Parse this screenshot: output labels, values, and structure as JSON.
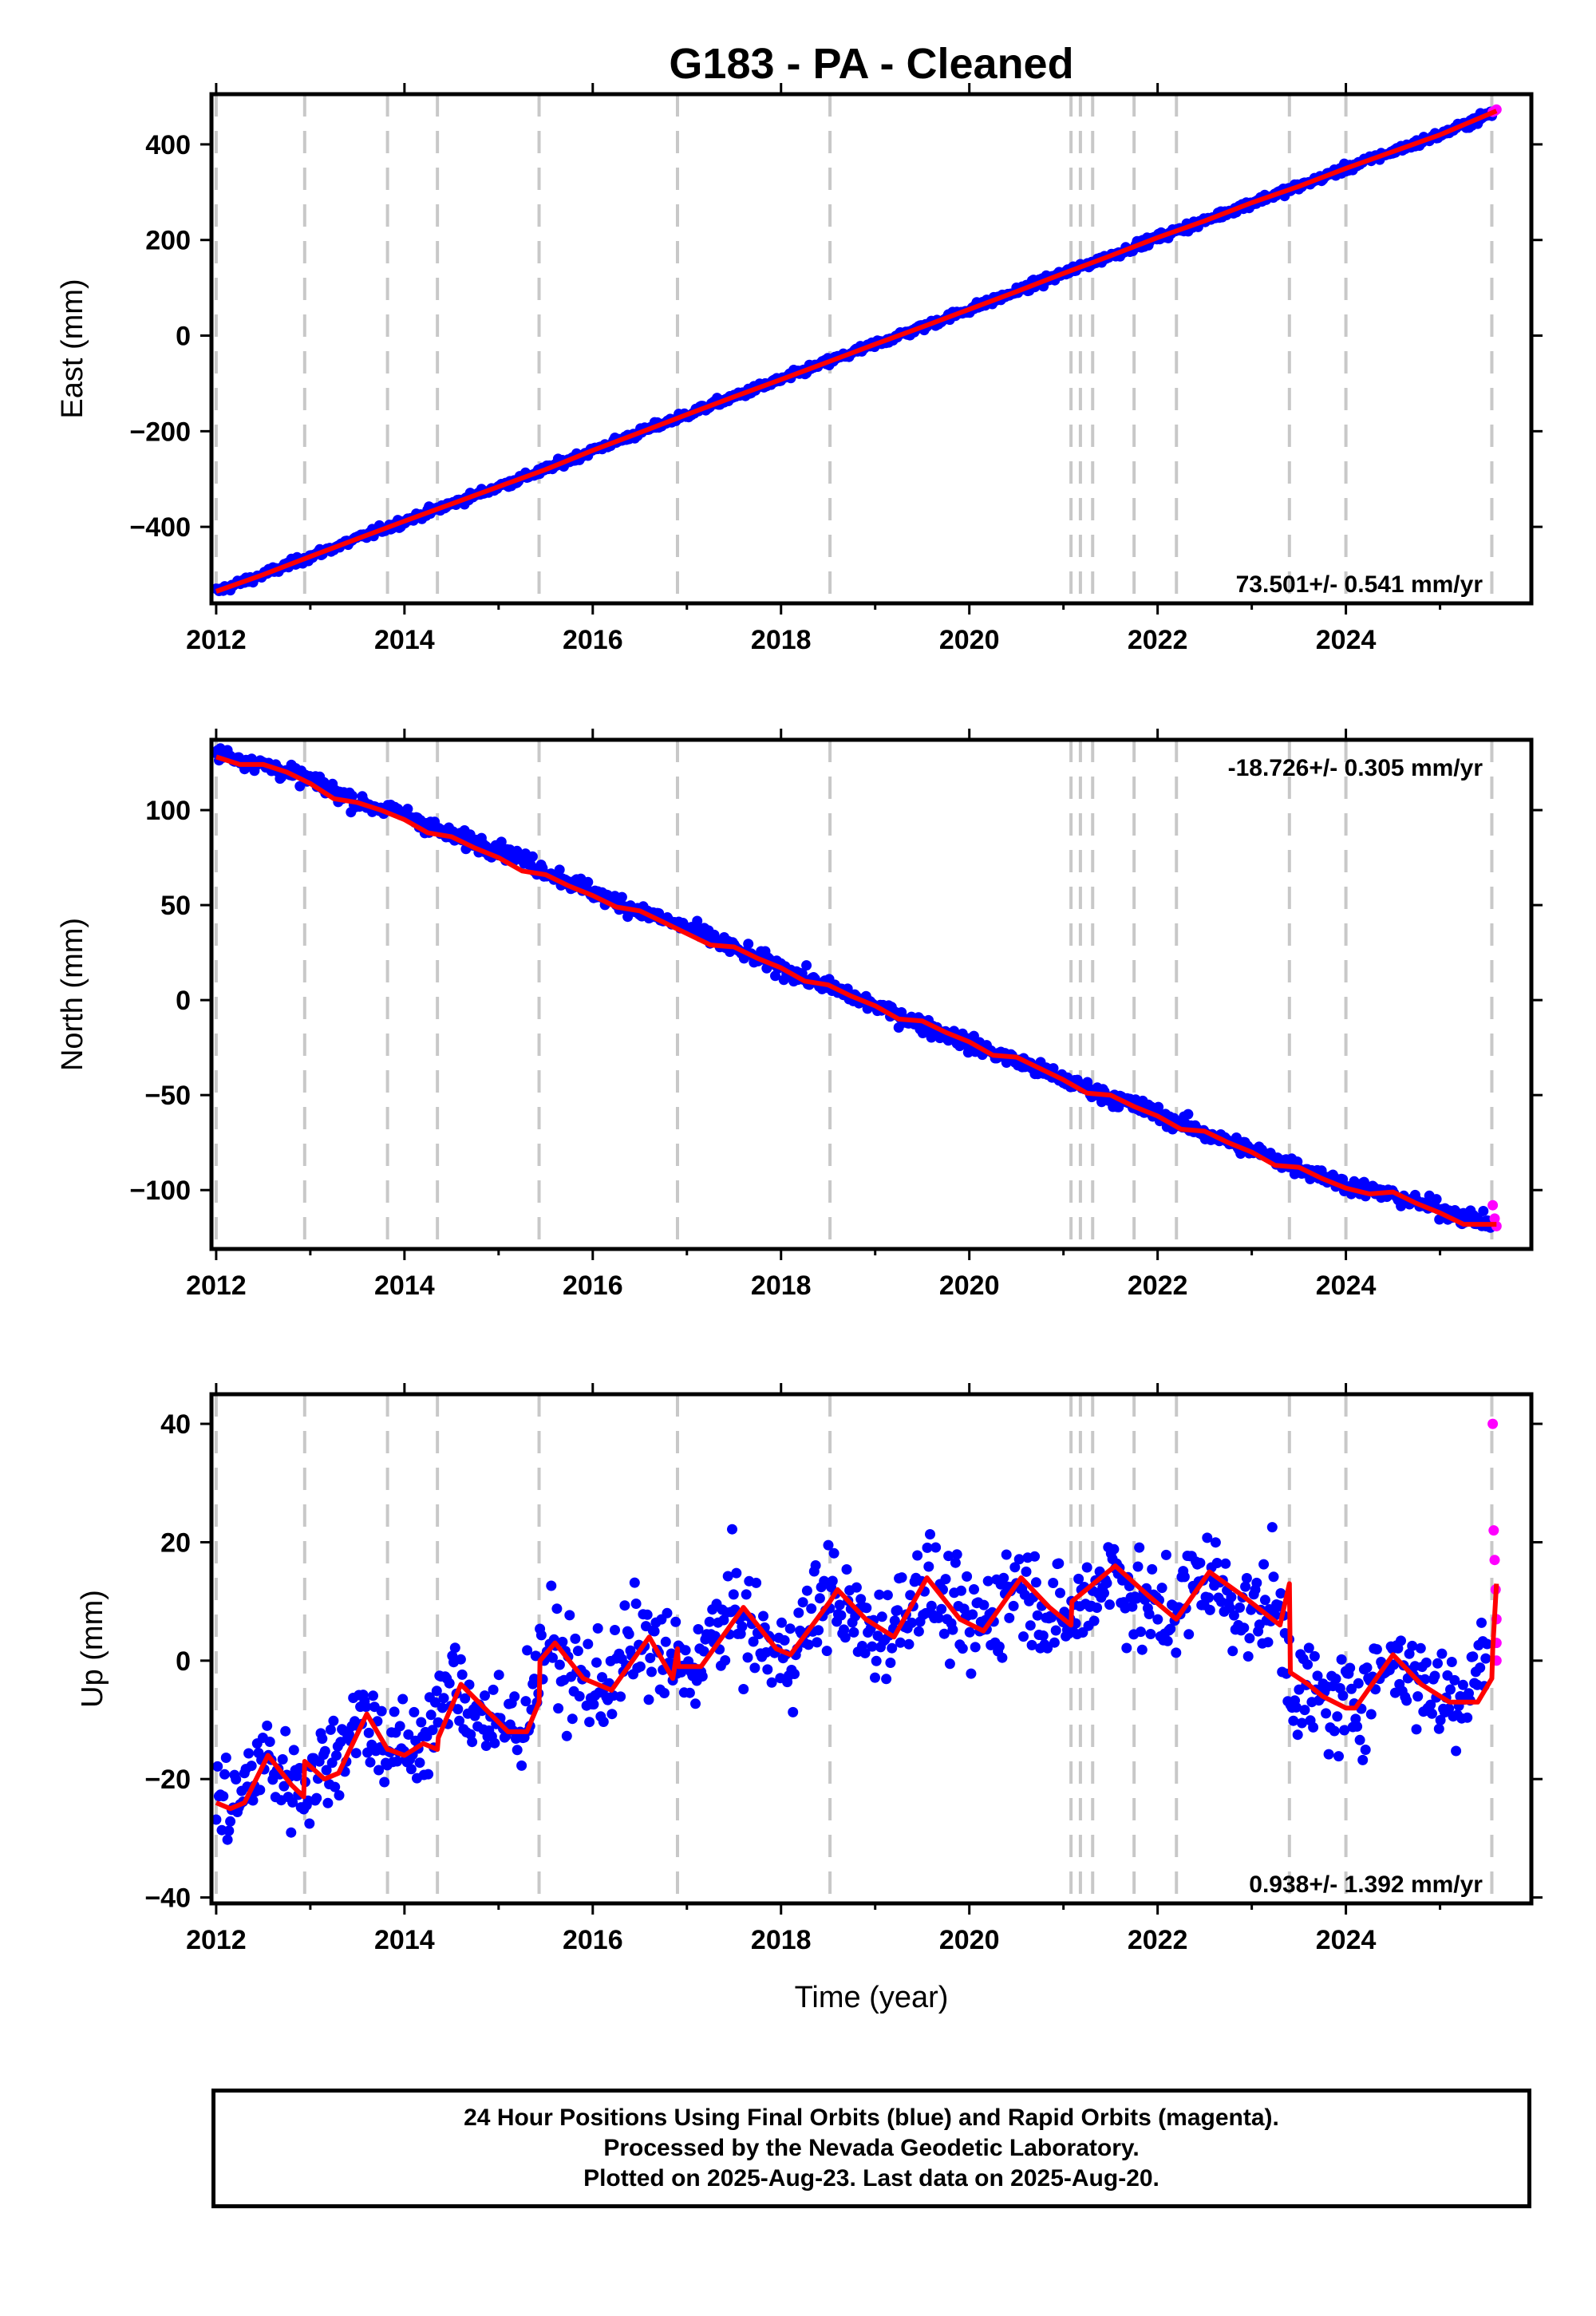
{
  "page_title": "G183  - PA - Cleaned",
  "footer": {
    "line1": "24 Hour Positions Using Final Orbits (blue) and Rapid Orbits (magenta).",
    "line2": "Processed by the Nevada Geodetic Laboratory.",
    "line3": "Plotted on 2025-Aug-23. Last data on 2025-Aug-20."
  },
  "colors": {
    "final_orbits": "#0000ff",
    "rapid_orbits": "#ff00ff",
    "model": "#ff0000",
    "equipment_lines": "#c8c8c8"
  },
  "chart_data": [
    {
      "type": "scatter",
      "title": "G183  - PA - Cleaned",
      "ylabel": "East (mm)",
      "xlabel": "",
      "xlim": [
        2011.95,
        2025.97
      ],
      "ylim": [
        -560,
        505
      ],
      "xticks": [
        2012,
        2014,
        2016,
        2018,
        2020,
        2022,
        2024
      ],
      "xtick_labels": [
        "2012",
        "2014",
        "2016",
        "2018",
        "2020",
        "2022",
        "2024"
      ],
      "yticks": [
        -400,
        -200,
        0,
        200,
        400
      ],
      "ytick_labels": [
        "−400",
        "−200",
        "0",
        "200",
        "400"
      ],
      "rate_label": "73.501+/- 0.541 mm/yr",
      "rate_position": "bottom-right",
      "grid": false,
      "event_lines": [
        2012.0,
        2012.94,
        2013.82,
        2014.35,
        2015.43,
        2016.9,
        2018.52,
        2021.08,
        2021.18,
        2021.31,
        2021.75,
        2022.2,
        2023.4,
        2024.0,
        2025.55
      ],
      "series": [
        {
          "name": "Final Orbits",
          "color": "#0000ff",
          "kind": "points",
          "x": [
            2012.0,
            2012.5,
            2013.0,
            2013.5,
            2014.0,
            2014.5,
            2015.0,
            2015.5,
            2016.0,
            2016.5,
            2017.0,
            2017.5,
            2018.0,
            2018.5,
            2019.0,
            2019.5,
            2020.0,
            2020.5,
            2021.0,
            2021.5,
            2022.0,
            2022.5,
            2023.0,
            2023.5,
            2024.0,
            2024.5,
            2025.0,
            2025.55
          ],
          "y": [
            -535,
            -500,
            -462,
            -425,
            -388,
            -352,
            -316,
            -280,
            -240,
            -203,
            -165,
            -128,
            -92,
            -55,
            -18,
            18,
            55,
            92,
            130,
            167,
            205,
            240,
            278,
            312,
            350,
            385,
            420,
            465
          ],
          "scatter_mm": 6
        },
        {
          "name": "Rapid Orbits",
          "color": "#ff00ff",
          "kind": "points",
          "x": [
            2025.56,
            2025.58,
            2025.6
          ],
          "y": [
            468,
            470,
            473
          ]
        },
        {
          "name": "Model",
          "color": "#ff0000",
          "kind": "line",
          "x": [
            2012.0,
            2012.5,
            2013.0,
            2013.5,
            2014.0,
            2014.5,
            2015.0,
            2015.5,
            2016.0,
            2016.5,
            2017.0,
            2017.5,
            2018.0,
            2018.5,
            2019.0,
            2019.5,
            2020.0,
            2020.5,
            2021.0,
            2021.5,
            2022.0,
            2022.5,
            2023.0,
            2023.5,
            2024.0,
            2024.5,
            2025.0,
            2025.6
          ],
          "y": [
            -535,
            -500,
            -462,
            -425,
            -388,
            -352,
            -316,
            -280,
            -240,
            -203,
            -165,
            -128,
            -92,
            -55,
            -18,
            18,
            55,
            92,
            130,
            167,
            205,
            240,
            278,
            312,
            350,
            385,
            420,
            470
          ]
        }
      ]
    },
    {
      "type": "scatter",
      "ylabel": "North (mm)",
      "xlabel": "",
      "xlim": [
        2011.95,
        2025.97
      ],
      "ylim": [
        -131,
        137
      ],
      "xticks": [
        2012,
        2014,
        2016,
        2018,
        2020,
        2022,
        2024
      ],
      "xtick_labels": [
        "2012",
        "2014",
        "2016",
        "2018",
        "2020",
        "2022",
        "2024"
      ],
      "yticks": [
        -100,
        -50,
        0,
        50,
        100
      ],
      "ytick_labels": [
        "−100",
        "−50",
        "0",
        "50",
        "100"
      ],
      "rate_label": "-18.726+/- 0.305 mm/yr",
      "rate_position": "top-right",
      "grid": false,
      "event_lines": [
        2012.0,
        2012.94,
        2013.82,
        2014.35,
        2015.43,
        2016.9,
        2018.52,
        2021.08,
        2021.18,
        2021.31,
        2021.75,
        2022.2,
        2023.4,
        2024.0,
        2025.55
      ],
      "series": [
        {
          "name": "Final Orbits",
          "color": "#0000ff",
          "kind": "points",
          "x": [
            2012.0,
            2012.5,
            2013.0,
            2013.5,
            2014.0,
            2014.5,
            2015.0,
            2015.5,
            2016.0,
            2016.5,
            2017.0,
            2017.5,
            2018.0,
            2018.5,
            2019.0,
            2019.5,
            2020.0,
            2020.5,
            2021.0,
            2021.5,
            2022.0,
            2022.5,
            2023.0,
            2023.5,
            2024.0,
            2024.5,
            2025.0,
            2025.55
          ],
          "y": [
            130,
            124,
            116,
            104,
            98,
            86,
            80,
            68,
            57,
            47,
            38,
            27,
            17,
            7,
            -3,
            -13,
            -23,
            -32,
            -42,
            -51,
            -60,
            -70,
            -79,
            -88,
            -97,
            -103,
            -110,
            -118
          ],
          "scatter_mm": 3
        },
        {
          "name": "Rapid Orbits",
          "color": "#ff00ff",
          "kind": "points",
          "x": [
            2025.56,
            2025.58,
            2025.6
          ],
          "y": [
            -108,
            -115,
            -119
          ]
        },
        {
          "name": "Model",
          "color": "#ff0000",
          "kind": "line",
          "x": [
            2012.0,
            2012.25,
            2012.5,
            2012.75,
            2013.0,
            2013.25,
            2013.5,
            2013.75,
            2014.0,
            2014.25,
            2014.5,
            2014.75,
            2015.0,
            2015.25,
            2015.5,
            2015.75,
            2016.0,
            2016.25,
            2016.5,
            2016.75,
            2017.0,
            2017.25,
            2017.5,
            2017.75,
            2018.0,
            2018.25,
            2018.5,
            2018.75,
            2019.0,
            2019.25,
            2019.5,
            2019.75,
            2020.0,
            2020.25,
            2020.5,
            2020.75,
            2021.0,
            2021.25,
            2021.5,
            2021.75,
            2022.0,
            2022.25,
            2022.5,
            2022.75,
            2023.0,
            2023.25,
            2023.5,
            2023.75,
            2024.0,
            2024.25,
            2024.5,
            2024.75,
            2025.0,
            2025.25,
            2025.6
          ],
          "y": [
            128,
            124,
            124,
            120,
            114,
            106,
            104,
            100,
            95,
            88,
            86,
            80,
            75,
            68,
            66,
            60,
            55,
            49,
            47,
            41,
            35,
            29,
            28,
            22,
            17,
            10,
            8,
            2,
            -3,
            -10,
            -11,
            -17,
            -22,
            -29,
            -30,
            -36,
            -42,
            -49,
            -50,
            -56,
            -61,
            -68,
            -69,
            -75,
            -80,
            -87,
            -88,
            -94,
            -99,
            -102,
            -101,
            -107,
            -112,
            -118,
            -118
          ]
        }
      ]
    },
    {
      "type": "scatter",
      "ylabel": "Up (mm)",
      "xlabel": "Time (year)",
      "xlim": [
        2011.95,
        2025.97
      ],
      "ylim": [
        -41,
        45
      ],
      "xticks": [
        2012,
        2014,
        2016,
        2018,
        2020,
        2022,
        2024
      ],
      "xtick_labels": [
        "2012",
        "2014",
        "2016",
        "2018",
        "2020",
        "2022",
        "2024"
      ],
      "yticks": [
        -40,
        -20,
        0,
        20,
        40
      ],
      "ytick_labels": [
        "−40",
        "−20",
        "0",
        "20",
        "40"
      ],
      "rate_label": "0.938+/- 1.392 mm/yr",
      "rate_position": "bottom-right",
      "grid": false,
      "event_lines": [
        2012.0,
        2012.94,
        2013.82,
        2014.35,
        2015.43,
        2016.9,
        2018.52,
        2021.08,
        2021.18,
        2021.31,
        2021.75,
        2022.2,
        2023.4,
        2024.0,
        2025.55
      ],
      "series": [
        {
          "name": "Final Orbits",
          "color": "#0000ff",
          "kind": "points",
          "x": [
            2012.0,
            2012.25,
            2012.5,
            2012.75,
            2013.0,
            2013.25,
            2013.5,
            2013.75,
            2014.0,
            2014.25,
            2014.5,
            2014.75,
            2015.0,
            2015.25,
            2015.5,
            2015.75,
            2016.0,
            2016.25,
            2016.5,
            2016.75,
            2017.0,
            2017.25,
            2017.5,
            2017.75,
            2018.0,
            2018.25,
            2018.5,
            2018.75,
            2019.0,
            2019.25,
            2019.5,
            2019.75,
            2020.0,
            2020.25,
            2020.5,
            2020.75,
            2021.0,
            2021.25,
            2021.5,
            2021.75,
            2022.0,
            2022.25,
            2022.5,
            2022.75,
            2023.0,
            2023.25,
            2023.45,
            2023.75,
            2024.0,
            2024.25,
            2024.5,
            2024.75,
            2025.0,
            2025.25,
            2025.5
          ],
          "y": [
            -24,
            -24,
            -16,
            -20,
            -20,
            -16,
            -9,
            -13,
            -16,
            -12,
            -4,
            -8,
            -12,
            -10,
            3,
            -2,
            -5,
            -2,
            4,
            0,
            -2,
            3,
            9,
            4,
            0,
            5,
            12,
            7,
            4,
            7,
            14,
            9,
            5,
            8,
            14,
            10,
            6,
            10,
            16,
            11,
            7,
            10,
            15,
            11,
            7,
            11,
            -5,
            -7,
            -8,
            -4,
            1,
            -3,
            -6,
            -5,
            2
          ],
          "scatter_mm": 6
        },
        {
          "name": "Rapid Orbits",
          "color": "#ff00ff",
          "kind": "points",
          "x": [
            2025.56,
            2025.57,
            2025.58,
            2025.59,
            2025.6,
            2025.6,
            2025.6
          ],
          "y": [
            40,
            22,
            17,
            12,
            7,
            3,
            0
          ]
        },
        {
          "name": "Model",
          "color": "#ff0000",
          "kind": "line",
          "x": [
            2012.0,
            2012.15,
            2012.3,
            2012.55,
            2012.8,
            2012.93,
            2012.94,
            2013.15,
            2013.3,
            2013.6,
            2013.82,
            2013.83,
            2014.0,
            2014.2,
            2014.35,
            2014.36,
            2014.6,
            2014.85,
            2015.1,
            2015.3,
            2015.43,
            2015.44,
            2015.6,
            2015.9,
            2016.2,
            2016.6,
            2016.85,
            2016.9,
            2016.91,
            2017.15,
            2017.6,
            2017.95,
            2018.1,
            2018.52,
            2018.6,
            2018.9,
            2019.2,
            2019.55,
            2019.9,
            2020.15,
            2020.55,
            2020.85,
            2021.08,
            2021.09,
            2021.55,
            2021.9,
            2022.2,
            2022.55,
            2022.9,
            2023.3,
            2023.4,
            2023.41,
            2023.6,
            2023.75,
            2024.0,
            2024.1,
            2024.5,
            2024.8,
            2025.1,
            2025.4,
            2025.55,
            2025.56,
            2025.6
          ],
          "y": [
            -24,
            -25,
            -24,
            -16,
            -21,
            -23,
            -17,
            -20,
            -19,
            -9,
            -15,
            -15,
            -16,
            -14,
            -15,
            -13,
            -4,
            -8,
            -12,
            -12,
            -7,
            0,
            3,
            -3,
            -5,
            4,
            -3,
            2,
            -1,
            -1,
            9,
            2,
            1,
            10,
            12,
            7,
            4,
            14,
            7,
            5,
            14,
            9,
            6,
            10,
            16,
            11,
            7,
            15,
            11,
            6,
            13,
            -2,
            -4,
            -6,
            -8,
            -8,
            1,
            -4,
            -7,
            -7,
            -3,
            2,
            13
          ]
        }
      ]
    }
  ]
}
